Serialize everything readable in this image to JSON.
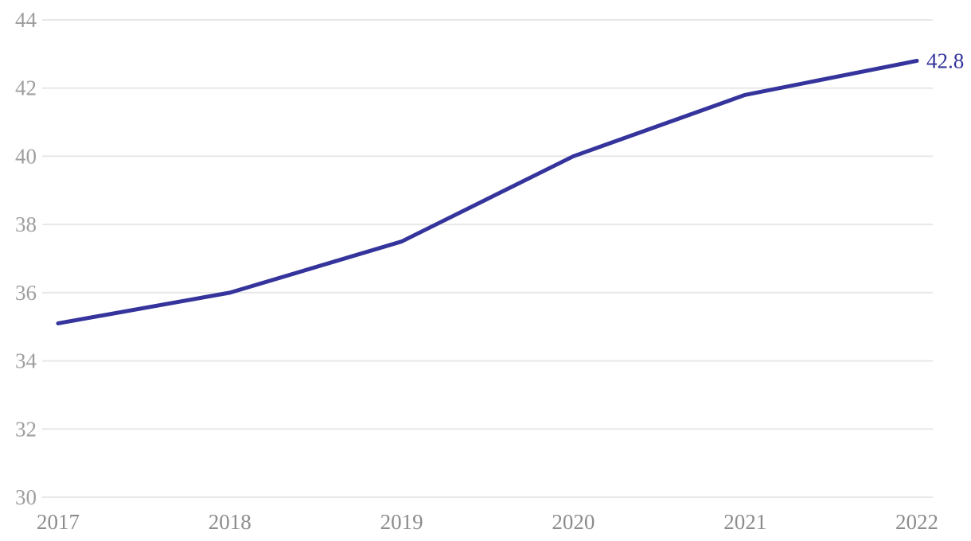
{
  "chart_data": {
    "type": "line",
    "title": "",
    "xlabel": "",
    "ylabel": "",
    "x": [
      "2017",
      "2018",
      "2019",
      "2020",
      "2021",
      "2022"
    ],
    "series": [
      {
        "name": "value",
        "values": [
          35.1,
          36.0,
          37.5,
          40.0,
          41.8,
          42.8
        ]
      }
    ],
    "end_label": "42.8",
    "ylim": [
      30,
      44
    ],
    "ytick_step": 2,
    "ytick_labels": [
      "30",
      "32",
      "34",
      "36",
      "38",
      "40",
      "42",
      "44"
    ],
    "grid": true,
    "legend": "none",
    "colors": {
      "line": "#34349c",
      "grid": "#e8e8e8",
      "y_tick_text": "#9e9e9e",
      "x_tick_text": "#8c8c8c",
      "end_label_text": "#34349c",
      "background": "#ffffff"
    }
  }
}
